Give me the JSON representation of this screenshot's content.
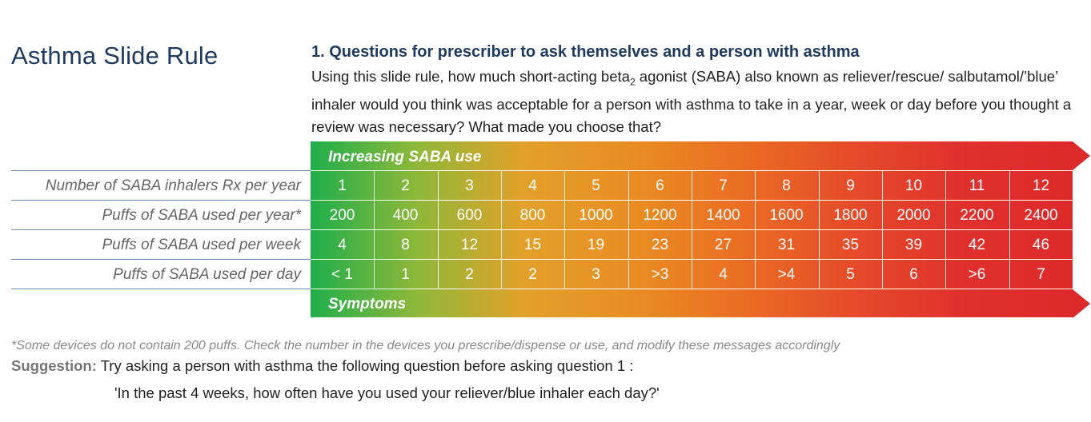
{
  "title": "Asthma Slide Rule",
  "question": {
    "heading": "1.  Questions for prescriber to ask themselves and a person with asthma",
    "body_part1": "Using this slide rule, how much short-acting beta",
    "body_sub": "2",
    "body_part2": " agonist (SABA) also known as reliever/rescue/ salbutamol/’blue’ inhaler would you think was acceptable for a person with asthma to take in a year, week or day before you thought a review was necessary? What made you choose that?"
  },
  "band": {
    "top_label": "Increasing SABA use",
    "bottom_label": "Symptoms",
    "colors": [
      "#1fae4b",
      "#e2a12a",
      "#ea6a24",
      "#dc2a2a"
    ]
  },
  "table": {
    "rows": [
      {
        "label": "Number of SABA inhalers Rx per year",
        "values": [
          "1",
          "2",
          "3",
          "4",
          "5",
          "6",
          "7",
          "8",
          "9",
          "10",
          "11",
          "12"
        ]
      },
      {
        "label": "Puffs of SABA used per year*",
        "values": [
          "200",
          "400",
          "600",
          "800",
          "1000",
          "1200",
          "1400",
          "1600",
          "1800",
          "2000",
          "2200",
          "2400"
        ]
      },
      {
        "label": "Puffs of SABA used per week",
        "values": [
          "4",
          "8",
          "12",
          "15",
          "19",
          "23",
          "27",
          "31",
          "35",
          "39",
          "42",
          "46"
        ]
      },
      {
        "label": "Puffs of SABA used per day",
        "values": [
          "< 1",
          "1",
          "2",
          "2",
          "3",
          ">3",
          "4",
          ">4",
          "5",
          "6",
          ">6",
          "7"
        ]
      }
    ]
  },
  "footnote": "*Some devices do not contain 200 puffs. Check the number in the devices you prescribe/dispense or use, and modify these messages accordingly",
  "suggestion": {
    "label": "Suggestion:",
    "text": " Try asking a person with asthma the following question before asking question 1 :",
    "quote": "'In the past 4 weeks, how often have you used your reliever/blue inhaler each day?'"
  }
}
